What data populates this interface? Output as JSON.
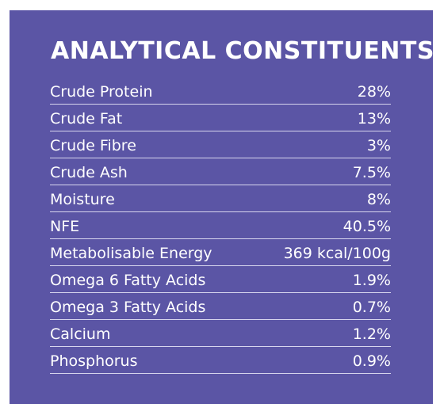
{
  "title": "ANALYTICAL CONSTITUENTS",
  "rows": [
    {
      "name": "Crude Protein",
      "value": "28%"
    },
    {
      "name": "Crude Fat",
      "value": "13%"
    },
    {
      "name": "Crude Fibre",
      "value": "3%"
    },
    {
      "name": "Crude Ash",
      "value": "7.5%"
    },
    {
      "name": "Moisture",
      "value": "8%"
    },
    {
      "name": "NFE",
      "value": "40.5%"
    },
    {
      "name": "Metabolisable Energy",
      "value": "369 kcal/100g"
    },
    {
      "name": "Omega 6 Fatty Acids",
      "value": "1.9%"
    },
    {
      "name": "Omega 3 Fatty Acids",
      "value": "0.7%"
    },
    {
      "name": "Calcium",
      "value": "1.2%"
    },
    {
      "name": "Phosphorus",
      "value": "0.9%"
    }
  ],
  "colors": {
    "panel_background": "#5b55a5",
    "text": "#ffffff",
    "divider": "#d8d6ee"
  }
}
